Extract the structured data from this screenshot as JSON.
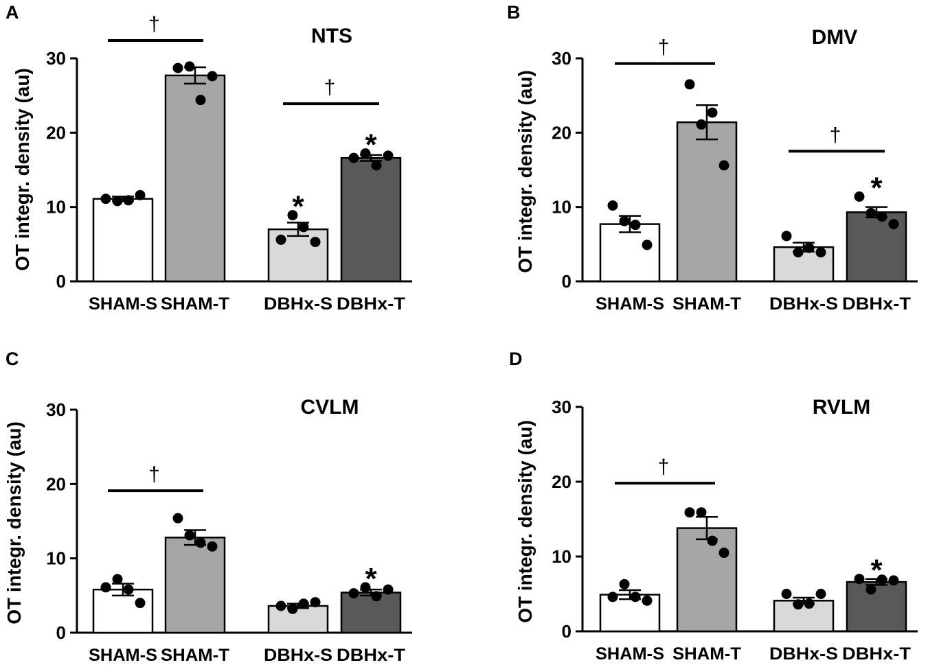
{
  "chart_data": [
    {
      "type": "bar",
      "panel": "A",
      "title": "NTS",
      "ylabel": "OT integr. density (au)",
      "xlabel": "",
      "ylim": [
        0,
        30
      ],
      "yticks": [
        0,
        10,
        20,
        30
      ],
      "categories": [
        "SHAM-S",
        "SHAM-T",
        "DBHx-S",
        "DBHx-T"
      ],
      "colors": [
        "#ffffff",
        "#a6a6a6",
        "#d9d9d9",
        "#595959"
      ],
      "values": [
        11.1,
        27.7,
        7.0,
        16.6
      ],
      "sem": [
        0.3,
        1.1,
        0.9,
        0.4
      ],
      "points": [
        [
          11.1,
          10.8,
          10.9,
          11.6
        ],
        [
          28.7,
          28.9,
          24.4,
          27.6
        ],
        [
          5.6,
          8.9,
          7.3,
          5.3
        ],
        [
          16.6,
          17.2,
          15.6,
          16.9
        ]
      ],
      "stars": [
        "",
        "",
        "*",
        "*"
      ],
      "brackets": [
        {
          "from": 0,
          "to": 1,
          "y": 32.4,
          "symbol": "†"
        },
        {
          "from": 2,
          "to": 3,
          "y": 23.9,
          "symbol": "†"
        }
      ]
    },
    {
      "type": "bar",
      "panel": "B",
      "title": "DMV",
      "ylabel": "OT integr. density (au)",
      "xlabel": "",
      "ylim": [
        0,
        30
      ],
      "yticks": [
        0,
        10,
        20,
        30
      ],
      "categories": [
        "SHAM-S",
        "SHAM-T",
        "DBHx-S",
        "DBHx-T"
      ],
      "colors": [
        "#ffffff",
        "#a6a6a6",
        "#d9d9d9",
        "#595959"
      ],
      "values": [
        7.7,
        21.4,
        4.6,
        9.3
      ],
      "sem": [
        1.1,
        2.3,
        0.6,
        0.7
      ],
      "points": [
        [
          10.2,
          8.1,
          7.6,
          4.9
        ],
        [
          26.5,
          21.1,
          22.7,
          15.6
        ],
        [
          6.1,
          3.9,
          4.5,
          3.9
        ],
        [
          11.4,
          9.2,
          8.7,
          7.7
        ]
      ],
      "stars": [
        "",
        "",
        "",
        "*"
      ],
      "brackets": [
        {
          "from": 0,
          "to": 1,
          "y": 29.3,
          "symbol": "†"
        },
        {
          "from": 2,
          "to": 3,
          "y": 17.5,
          "symbol": "†"
        }
      ]
    },
    {
      "type": "bar",
      "panel": "C",
      "title": "CVLM",
      "ylabel": "OT integr. density (au)",
      "xlabel": "",
      "ylim": [
        0,
        30
      ],
      "yticks": [
        0,
        10,
        20,
        30
      ],
      "categories": [
        "SHAM-S",
        "SHAM-T",
        "DBHx-S",
        "DBHx-T"
      ],
      "colors": [
        "#ffffff",
        "#a6a6a6",
        "#d9d9d9",
        "#595959"
      ],
      "values": [
        5.8,
        12.8,
        3.6,
        5.4
      ],
      "sem": [
        0.8,
        1.0,
        0.3,
        0.4
      ],
      "points": [
        [
          6.1,
          7.2,
          5.8,
          4.0
        ],
        [
          15.4,
          13.1,
          12.1,
          11.6
        ],
        [
          3.6,
          3.2,
          3.9,
          4.1
        ],
        [
          5.3,
          6.1,
          4.9,
          5.8
        ]
      ],
      "stars": [
        "",
        "",
        "",
        "*"
      ],
      "brackets": [
        {
          "from": 0,
          "to": 1,
          "y": 19.1,
          "symbol": "†"
        }
      ]
    },
    {
      "type": "bar",
      "panel": "D",
      "title": "RVLM",
      "ylabel": "OT integr. density (au)",
      "xlabel": "",
      "ylim": [
        0,
        30
      ],
      "yticks": [
        0,
        10,
        20,
        30
      ],
      "categories": [
        "SHAM-S",
        "SHAM-T",
        "DBHx-S",
        "DBHx-T"
      ],
      "colors": [
        "#ffffff",
        "#a6a6a6",
        "#d9d9d9",
        "#595959"
      ],
      "values": [
        4.9,
        13.8,
        4.1,
        6.6
      ],
      "sem": [
        0.6,
        1.5,
        0.4,
        0.4
      ],
      "points": [
        [
          4.6,
          6.3,
          4.6,
          4.1
        ],
        [
          15.9,
          15.9,
          12.1,
          10.5
        ],
        [
          5.0,
          3.6,
          3.7,
          5.0
        ],
        [
          7.0,
          5.6,
          6.9,
          6.8
        ]
      ],
      "stars": [
        "",
        "",
        "",
        "*"
      ],
      "brackets": [
        {
          "from": 0,
          "to": 1,
          "y": 19.8,
          "symbol": "†"
        }
      ]
    }
  ]
}
